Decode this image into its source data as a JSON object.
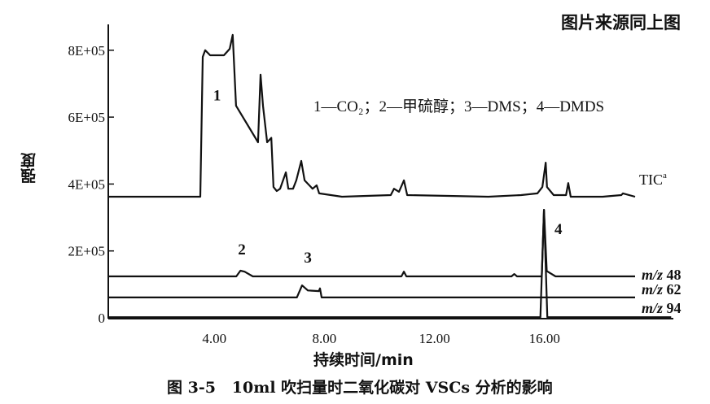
{
  "header": {
    "source_note": "图片来源同上图"
  },
  "caption": "图 3-5   10ml 吹扫量时二氧化碳对 VSCs 分析的影响",
  "chart_data": {
    "type": "line",
    "title": "",
    "xlabel": "持续时间/min",
    "ylabel": "强度",
    "xlim": [
      0,
      20
    ],
    "ylim": [
      0,
      850000
    ],
    "x_ticks": [
      4,
      8,
      12,
      16
    ],
    "x_tick_labels": [
      "4.00",
      "8.00",
      "12.00",
      "16.00"
    ],
    "y_ticks": [
      0,
      200000,
      400000,
      600000,
      800000
    ],
    "y_tick_labels": [
      "0",
      "2E+05",
      "4E+05",
      "6E+05",
      "8E+05"
    ],
    "grid": false,
    "legend_text": "1—CO₂；2—甲硫醇；3—DMS；4—DMDS",
    "peak_labels": [
      {
        "text": "1",
        "x": 4.1,
        "y": 650000
      },
      {
        "text": "2",
        "x": 5.0,
        "y": 190000
      },
      {
        "text": "3",
        "x": 7.4,
        "y": 165000
      },
      {
        "text": "4",
        "x": 16.5,
        "y": 250000
      }
    ],
    "series": [
      {
        "name": "TIC",
        "name_sup": "a",
        "color": "#111111",
        "x": [
          0.15,
          3.49,
          3.58,
          3.67,
          3.85,
          4.35,
          4.56,
          4.67,
          4.79,
          5.59,
          5.68,
          5.77,
          5.92,
          6.07,
          6.15,
          6.27,
          6.39,
          6.6,
          6.69,
          6.86,
          6.98,
          7.16,
          7.28,
          7.57,
          7.72,
          7.81,
          8.64,
          10.41,
          10.53,
          10.71,
          10.89,
          11.01,
          13.96,
          15.15,
          15.74,
          15.92,
          16.04,
          16.09,
          16.33,
          16.78,
          16.86,
          16.95,
          18.11,
          18.79,
          18.85,
          19.29
        ],
        "y": [
          362000,
          362000,
          780000,
          800000,
          785000,
          785000,
          804000,
          846000,
          634000,
          525000,
          727000,
          634000,
          525000,
          538000,
          391000,
          379000,
          386000,
          435000,
          386000,
          386000,
          411000,
          469000,
          411000,
          386000,
          396000,
          372000,
          362000,
          367000,
          386000,
          377000,
          411000,
          367000,
          362000,
          367000,
          372000,
          391000,
          464000,
          391000,
          367000,
          367000,
          403000,
          362000,
          362000,
          367000,
          372000,
          362000
        ]
      },
      {
        "name": "m/z 48",
        "color": "#111111",
        "x": [
          0.15,
          4.8,
          4.95,
          5.1,
          5.4,
          10.8,
          10.89,
          10.98,
          14.8,
          14.9,
          15.0,
          15.9,
          15.98,
          16.08,
          16.4,
          19.29
        ],
        "y": [
          124000,
          124000,
          141000,
          138000,
          124000,
          124000,
          138000,
          124000,
          124000,
          131000,
          124000,
          124000,
          323000,
          140000,
          124000,
          124000
        ]
      },
      {
        "name": "m/z 62",
        "color": "#111111",
        "x": [
          0.15,
          7.0,
          7.19,
          7.4,
          7.8,
          7.84,
          7.9,
          19.29
        ],
        "y": [
          61000,
          61000,
          97000,
          82000,
          80000,
          88000,
          61000,
          61000
        ]
      },
      {
        "name": "m/z 94",
        "color": "#111111",
        "x": [
          0.15,
          15.85,
          15.98,
          16.1,
          20.6
        ],
        "y": [
          2000,
          2000,
          323000,
          2000,
          2000
        ]
      }
    ]
  }
}
